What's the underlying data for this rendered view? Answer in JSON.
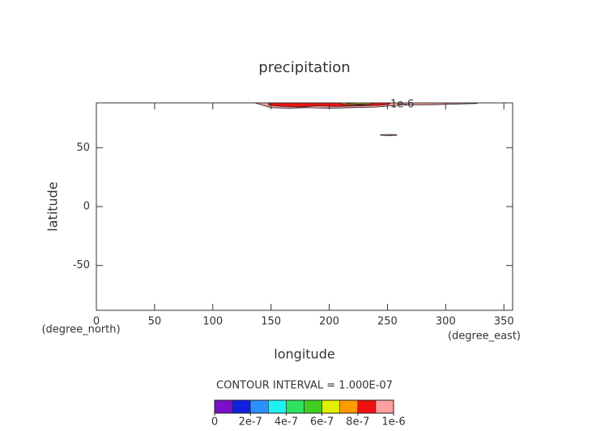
{
  "chart_data": {
    "type": "contour",
    "title": "precipitation",
    "x_label": "longitude",
    "y_label": "latitude",
    "x_units": "(degree_east)",
    "y_units": "(degree_north)",
    "xlim": [
      0,
      357.5
    ],
    "ylim": [
      -88,
      88
    ],
    "xticks": [
      0,
      50,
      100,
      150,
      200,
      250,
      300,
      350
    ],
    "yticks": [
      -50,
      0,
      50
    ],
    "contour_interval": "CONTOUR INTERVAL = 1.000E-07",
    "colorbar": {
      "levels": [
        0,
        1e-07,
        2e-07,
        3e-07,
        4e-07,
        5e-07,
        6e-07,
        7e-07,
        8e-07,
        9e-07,
        1e-06
      ],
      "colors": [
        "#7a10c8",
        "#1020e0",
        "#2a90ff",
        "#20f0f0",
        "#30e060",
        "#40d020",
        "#e0f000",
        "#ff9a00",
        "#f01010",
        "#ffa0a0"
      ],
      "ticks": [
        0,
        {
          "value": 2e-07,
          "label": "2e-7"
        },
        {
          "value": 4e-07,
          "label": "4e-7"
        },
        {
          "value": 6e-07,
          "label": "6e-7"
        },
        {
          "value": 8e-07,
          "label": "8e-7"
        },
        {
          "value": 1e-06,
          "label": "1e-6"
        }
      ]
    },
    "regions": [
      {
        "level": 9e-07,
        "lon": [
          136,
          150,
          165,
          180,
          200,
          220,
          240,
          260,
          290,
          327,
          327,
          136
        ],
        "lat": [
          88,
          84,
          83.5,
          84,
          83.5,
          84,
          84.5,
          86,
          86.5,
          87.5,
          88,
          88
        ]
      },
      {
        "level": 8e-07,
        "lon": [
          148,
          160,
          175,
          190,
          205,
          225,
          245,
          252,
          252,
          148
        ],
        "lat": [
          86,
          85,
          84.5,
          85.5,
          85,
          85.5,
          86,
          87,
          88,
          88
        ]
      },
      {
        "level": 7e-07,
        "lon": [
          210,
          220,
          232,
          238,
          238,
          210
        ],
        "lat": [
          87,
          86.2,
          86.5,
          87.5,
          88,
          88
        ]
      },
      {
        "level": 6e-07,
        "lon": [
          215,
          225,
          232,
          232,
          215
        ],
        "lat": [
          87.5,
          87,
          87.2,
          88,
          88
        ]
      },
      {
        "level": 9e-07,
        "lon": [
          244,
          252,
          258,
          258,
          252,
          244
        ],
        "lat": [
          60.6,
          60.2,
          60.6,
          61,
          61.2,
          61
        ]
      }
    ],
    "contour_label": {
      "value": 1e-06,
      "label": "1e-6"
    }
  }
}
